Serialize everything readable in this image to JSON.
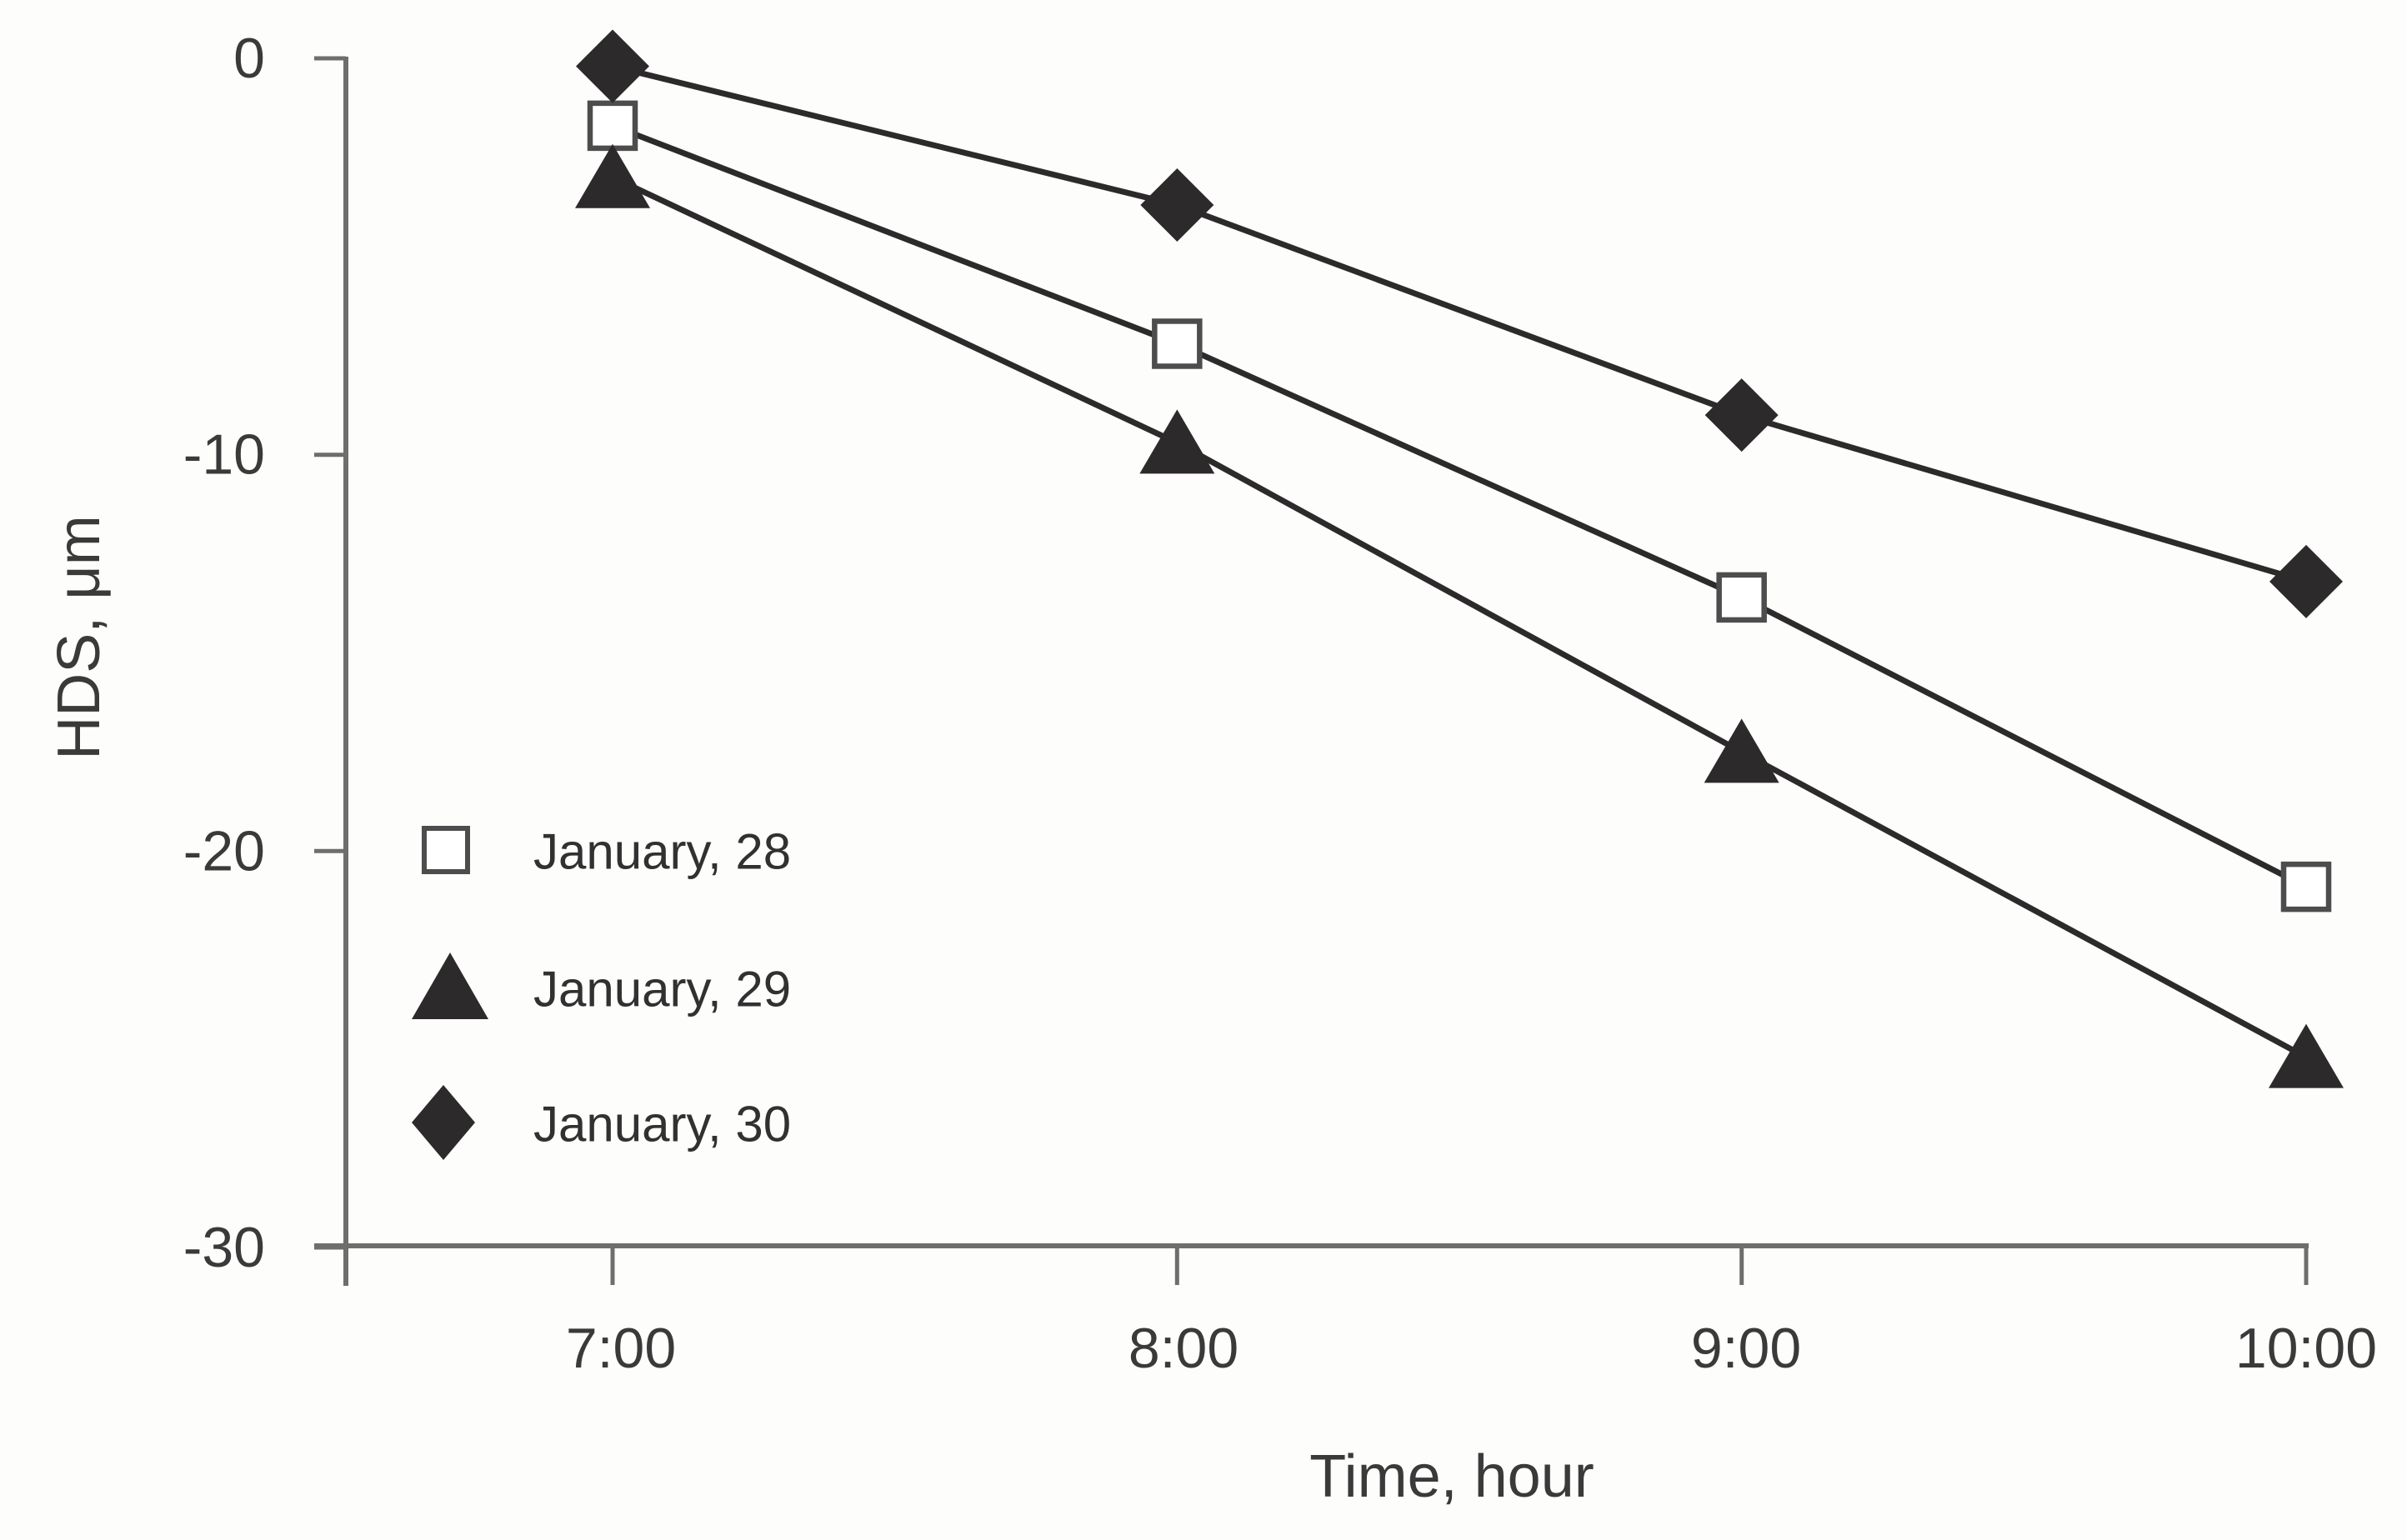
{
  "chart_data": {
    "type": "line",
    "title": "",
    "xlabel": "Time, hour",
    "ylabel": "HDS, μm",
    "x": [
      "7:00",
      "8:00",
      "9:00",
      "10:00"
    ],
    "x_tick_labels": [
      "7:00",
      "8:00",
      "9:00",
      "10:00"
    ],
    "y_tick_labels": [
      "0",
      "-10",
      "-20",
      "-30"
    ],
    "ylim": [
      -30,
      0
    ],
    "grid": false,
    "legend_position": "lower-left-inside",
    "series": [
      {
        "name": "January, 28",
        "marker": "square-open",
        "values": [
          -1.7,
          -7.2,
          -13.6,
          -20.9
        ]
      },
      {
        "name": "January, 29",
        "marker": "triangle-filled",
        "values": [
          -3.0,
          -9.7,
          -17.5,
          -25.2
        ]
      },
      {
        "name": "January, 30",
        "marker": "diamond-filled",
        "values": [
          -0.2,
          -3.7,
          -9.0,
          -13.2
        ]
      }
    ],
    "colors": {
      "ink": "#2d2a2b",
      "axis": "#6e6e6e",
      "text": "#3a3a3a",
      "marker_open_stroke": "#4d4d4d",
      "marker_open_fill": "#ffffff"
    }
  }
}
